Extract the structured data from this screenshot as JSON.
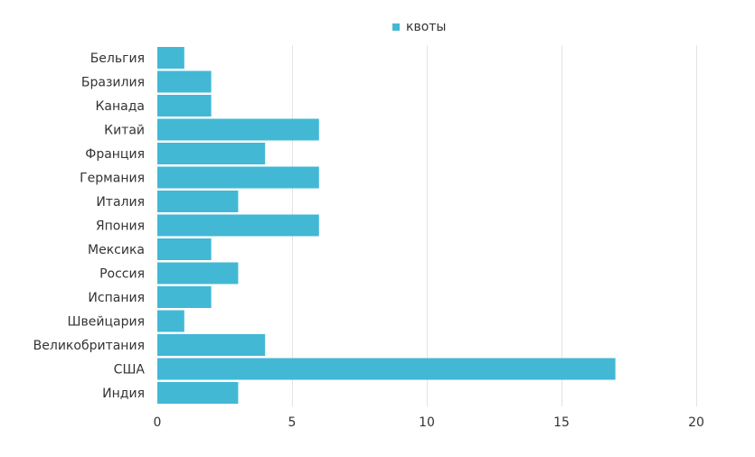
{
  "chart_data": {
    "type": "bar",
    "orientation": "horizontal",
    "categories": [
      "Бельгия",
      "Бразилия",
      "Канада",
      "Китай",
      "Франция",
      "Германия",
      "Италия",
      "Япония",
      "Мексика",
      "Россия",
      "Испания",
      "Швейцария",
      "Великобритания",
      "США",
      "Индия"
    ],
    "series": [
      {
        "name": "квоты",
        "color": "#42b8d5",
        "values": [
          1,
          2,
          2,
          6,
          4,
          6,
          3,
          6,
          2,
          3,
          2,
          1,
          4,
          17,
          3
        ]
      }
    ],
    "xlim": [
      0,
      20
    ],
    "xticks": [
      0,
      5,
      10,
      15,
      20
    ],
    "xtick_labels": [
      "0",
      "5",
      "10",
      "15",
      "20"
    ],
    "grid": "vertical",
    "legend_position": "top-center",
    "title": "",
    "xlabel": "",
    "ylabel": ""
  }
}
